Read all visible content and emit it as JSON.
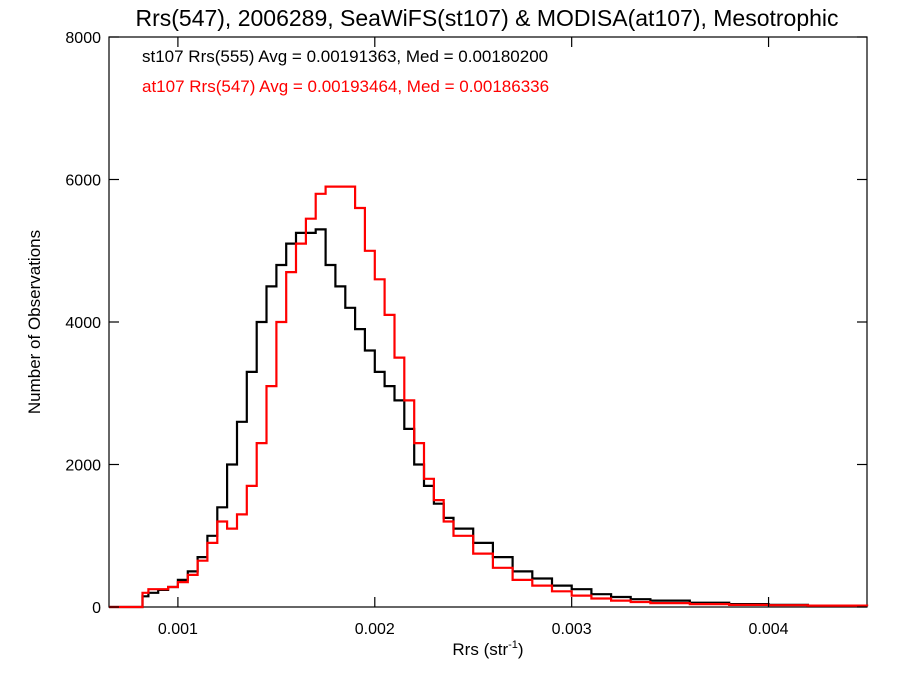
{
  "chart_data": {
    "type": "line",
    "title": "Rrs(547), 2006289, SeaWiFS(st107) & MODISA(at107), Mesotrophic",
    "xlabel_main": "Rrs (str",
    "xlabel_sup": "-1",
    "xlabel_tail": ")",
    "ylabel": "Number of Observations",
    "xlim": [
      0.00065,
      0.0045
    ],
    "ylim": [
      0,
      8000
    ],
    "xticks": [
      0.001,
      0.002,
      0.003,
      0.004
    ],
    "xtick_labels": [
      "0.001",
      "0.002",
      "0.003",
      "0.004"
    ],
    "yticks": [
      0,
      2000,
      4000,
      6000,
      8000
    ],
    "ytick_labels": [
      "0",
      "2000",
      "4000",
      "6000",
      "8000"
    ],
    "grid": false,
    "legend_position": "top-left",
    "series": [
      {
        "label": "st107 Rrs(555) Avg = 0.00191363, Med = 0.00180200",
        "color": "#000000",
        "x": [
          0.00065,
          0.0008,
          0.00082,
          0.00085,
          0.0009,
          0.00095,
          0.001,
          0.00105,
          0.0011,
          0.00115,
          0.0012,
          0.00125,
          0.0013,
          0.00135,
          0.0014,
          0.00145,
          0.0015,
          0.00155,
          0.0016,
          0.00165,
          0.0017,
          0.00175,
          0.0018,
          0.00185,
          0.0019,
          0.00195,
          0.002,
          0.00205,
          0.0021,
          0.00215,
          0.0022,
          0.00225,
          0.0023,
          0.00235,
          0.0024,
          0.0025,
          0.0026,
          0.0027,
          0.0028,
          0.0029,
          0.003,
          0.0031,
          0.0032,
          0.0033,
          0.0034,
          0.0036,
          0.0038,
          0.004,
          0.0042,
          0.0045
        ],
        "y": [
          0,
          0,
          150,
          200,
          240,
          280,
          380,
          500,
          700,
          1000,
          1400,
          2000,
          2600,
          3300,
          4000,
          4500,
          4800,
          5100,
          5250,
          5250,
          5300,
          4800,
          4500,
          4200,
          3900,
          3600,
          3300,
          3100,
          2900,
          2500,
          2000,
          1700,
          1450,
          1250,
          1100,
          900,
          700,
          500,
          400,
          300,
          250,
          180,
          140,
          110,
          90,
          60,
          40,
          30,
          20,
          10
        ]
      },
      {
        "label": "at107 Rrs(547) Avg = 0.00193464, Med = 0.00186336",
        "color": "#ff0000",
        "x": [
          0.00065,
          0.0008,
          0.00082,
          0.00085,
          0.0009,
          0.00095,
          0.001,
          0.00105,
          0.0011,
          0.00115,
          0.0012,
          0.00125,
          0.0013,
          0.00135,
          0.0014,
          0.00145,
          0.0015,
          0.00155,
          0.0016,
          0.00165,
          0.0017,
          0.00175,
          0.0018,
          0.00185,
          0.0019,
          0.00195,
          0.002,
          0.00205,
          0.0021,
          0.00215,
          0.0022,
          0.00225,
          0.0023,
          0.00235,
          0.0024,
          0.0025,
          0.0026,
          0.0027,
          0.0028,
          0.0029,
          0.003,
          0.0031,
          0.0032,
          0.0033,
          0.0034,
          0.0036,
          0.0038,
          0.004,
          0.0042,
          0.0045
        ],
        "y": [
          0,
          0,
          200,
          250,
          250,
          280,
          350,
          450,
          650,
          900,
          1200,
          1100,
          1300,
          1700,
          2300,
          3100,
          4000,
          4700,
          5100,
          5450,
          5800,
          5900,
          5900,
          5900,
          5600,
          5000,
          4600,
          4100,
          3500,
          2900,
          2300,
          1800,
          1500,
          1200,
          1000,
          750,
          550,
          380,
          300,
          220,
          160,
          120,
          90,
          70,
          55,
          40,
          30,
          25,
          20,
          10
        ]
      }
    ]
  }
}
